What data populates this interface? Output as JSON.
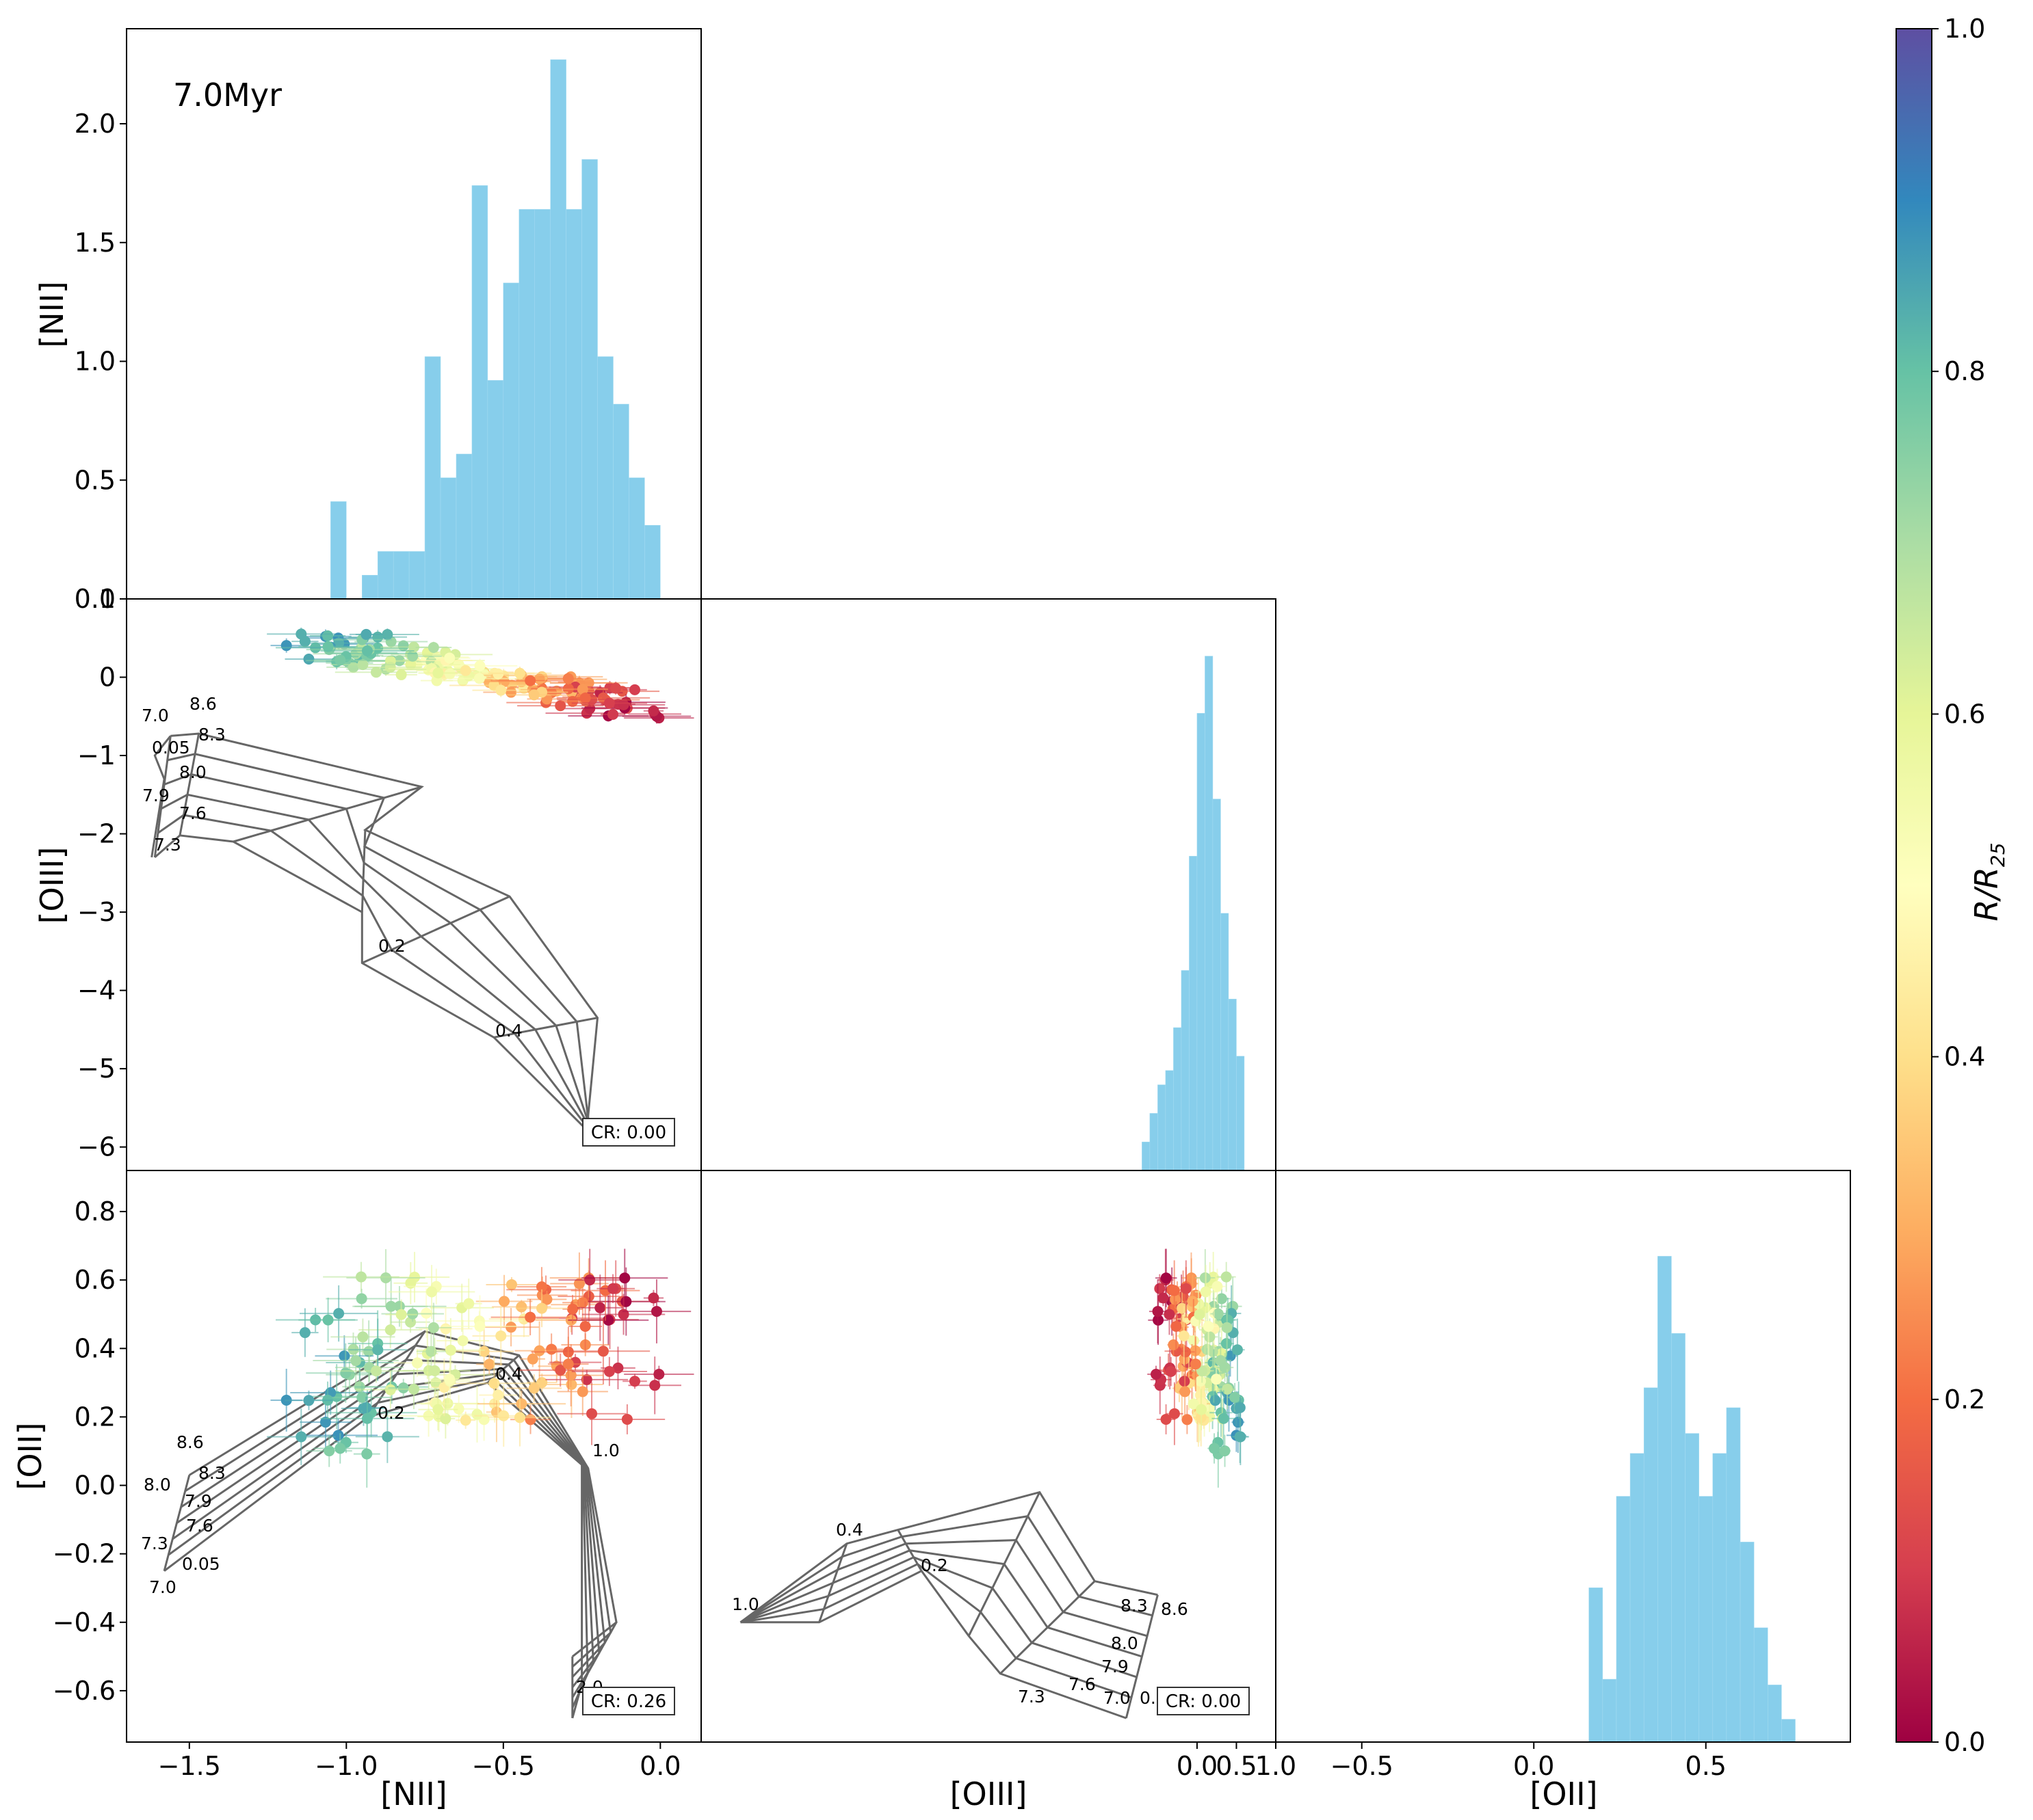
{
  "chart_data": {
    "type": "corner",
    "age_label": "7.0Myr",
    "axis_labels": {
      "nii": "[NII]",
      "oiii": "[OIII]",
      "oii": "[OII]"
    },
    "colorbar": {
      "label": "R/R25",
      "label_main": "R/R",
      "label_sub": "25",
      "range": [
        0.0,
        1.0
      ],
      "ticks": [
        "0.0",
        "0.2",
        "0.4",
        "0.6",
        "0.8",
        "1.0"
      ],
      "colormap": "Spectral",
      "stops": [
        "#9e0142",
        "#d53e4f",
        "#f46d43",
        "#fdae61",
        "#fee08b",
        "#ffffbf",
        "#e6f598",
        "#abdda4",
        "#66c2a5",
        "#3288bd",
        "#5e4fa2"
      ]
    },
    "hist_color": "#87ceeb",
    "grid_color": "#666666",
    "panels": [
      {
        "id": "hist-nii",
        "type": "histogram",
        "variable": "[NII]",
        "xlim": [
          -1.7,
          0.13
        ],
        "ylim": [
          0,
          2.4
        ],
        "yticks": [
          "0.0",
          "0.5",
          "1.0",
          "1.5",
          "2.0"
        ],
        "yticks_values": [
          0.0,
          0.5,
          1.0,
          1.5,
          2.0
        ],
        "bins": [
          -1.05,
          -1.0,
          -0.95,
          -0.9,
          -0.85,
          -0.8,
          -0.75,
          -0.7,
          -0.65,
          -0.6,
          -0.55,
          -0.5,
          -0.45,
          -0.4,
          -0.35,
          -0.3,
          -0.25,
          -0.2,
          -0.15,
          -0.1,
          -0.05,
          0.0
        ],
        "counts": [
          0.41,
          0,
          0.1,
          0.2,
          0.2,
          0.2,
          1.02,
          0.51,
          0.61,
          1.74,
          0.92,
          1.33,
          1.64,
          1.64,
          2.27,
          1.64,
          1.85,
          1.02,
          0.82,
          0.51,
          0.31
        ]
      },
      {
        "id": "scatter-nii-oiii",
        "type": "scatter",
        "x": "[NII]",
        "y": "[OIII]",
        "xlim": [
          -1.7,
          0.13
        ],
        "ylim": [
          -6.3,
          1.0
        ],
        "yticks": [
          "−6",
          "−5",
          "−4",
          "−3",
          "−2",
          "−1",
          "0",
          "1"
        ],
        "yticks_values": [
          -6,
          -5,
          -4,
          -3,
          -2,
          -1,
          0,
          1
        ],
        "cr_label": "CR: 0.00",
        "grid_labels": [
          "7.0",
          "8.6",
          "8.3",
          "0.05",
          "8.0",
          "7.9",
          "7.6",
          "7.3",
          "0.2",
          "0.4"
        ],
        "points_summary": "~150 HII regions at [NII] -1.3..0.0, [OIII] -0.7..0.6, colored by R/R25"
      },
      {
        "id": "hist-oiii",
        "type": "histogram",
        "variable": "[OIII]",
        "xlim": [
          -6.3,
          1.0
        ],
        "ylim": [
          0,
          2.0
        ],
        "bins": [
          -0.7,
          -0.6,
          -0.5,
          -0.4,
          -0.3,
          -0.2,
          -0.1,
          0.0,
          0.1,
          0.2,
          0.3,
          0.4,
          0.5,
          0.6
        ],
        "counts": [
          0.1,
          0.2,
          0.3,
          0.35,
          0.5,
          0.7,
          1.1,
          1.6,
          1.8,
          1.3,
          0.9,
          0.6,
          0.4,
          0.2
        ]
      },
      {
        "id": "scatter-nii-oii",
        "type": "scatter",
        "x": "[NII]",
        "y": "[OII]",
        "xlim": [
          -1.7,
          0.13
        ],
        "ylim": [
          -0.75,
          0.92
        ],
        "xticks": [
          "−1.5",
          "−1.0",
          "−0.5",
          "0.0"
        ],
        "xticks_values": [
          -1.5,
          -1.0,
          -0.5,
          0.0
        ],
        "yticks": [
          "−0.6",
          "−0.4",
          "−0.2",
          "0.0",
          "0.2",
          "0.4",
          "0.6",
          "0.8"
        ],
        "yticks_values": [
          -0.6,
          -0.4,
          -0.2,
          0.0,
          0.2,
          0.4,
          0.6,
          0.8
        ],
        "cr_label": "CR: 0.26",
        "grid_labels": [
          "8.6",
          "8.0",
          "8.3",
          "7.9",
          "7.6",
          "7.3",
          "0.05",
          "7.0",
          "0.2",
          "0.4",
          "1.0",
          "2.0"
        ]
      },
      {
        "id": "scatter-oiii-oii",
        "type": "scatter",
        "x": "[OIII]",
        "y": "[OII]",
        "xlim": [
          -6.3,
          1.0
        ],
        "ylim": [
          -0.75,
          0.92
        ],
        "xticks": [
          "0.0",
          "0.5",
          "1.0"
        ],
        "xticks_values": [
          0.0,
          0.5,
          1.0
        ],
        "cr_label": "CR: 0.00",
        "grid_labels": [
          "0.4",
          "0.2",
          "1.0",
          "8.3",
          "8.6",
          "8.0",
          "7.9",
          "7.6",
          "7.3",
          "7.0",
          "0."
        ]
      },
      {
        "id": "hist-oii",
        "type": "histogram",
        "variable": "[OII]",
        "xlim": [
          -0.75,
          0.92
        ],
        "ylim": [
          0,
          2.0
        ],
        "xticks": [
          "−0.5",
          "0.0",
          "0.5"
        ],
        "xticks_values": [
          -0.5,
          0.0,
          0.5
        ],
        "bins": [
          0.16,
          0.2,
          0.24,
          0.28,
          0.32,
          0.36,
          0.4,
          0.44,
          0.48,
          0.52,
          0.56,
          0.6,
          0.64,
          0.68,
          0.72,
          0.76
        ],
        "counts": [
          0.54,
          0.22,
          0.86,
          1.01,
          1.24,
          1.7,
          1.43,
          1.08,
          0.86,
          1.01,
          1.17,
          0.7,
          0.4,
          0.2,
          0.08
        ]
      }
    ]
  }
}
